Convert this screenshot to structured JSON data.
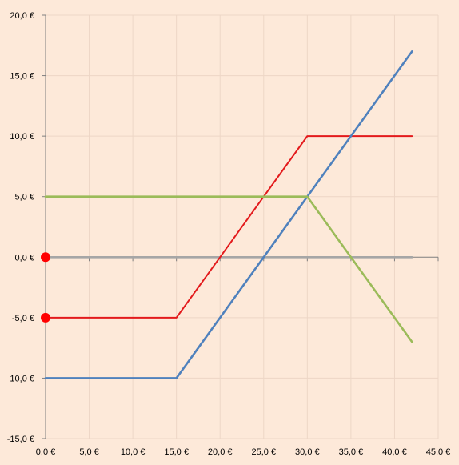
{
  "chart_data": {
    "type": "line",
    "title": "",
    "xlabel": "",
    "ylabel": "",
    "background": "#FDE9D9",
    "grid": true,
    "xlim": [
      0,
      45
    ],
    "ylim": [
      -15,
      20
    ],
    "x_ticks": [
      0,
      5,
      10,
      15,
      20,
      25,
      30,
      35,
      40,
      45
    ],
    "x_tick_labels": [
      "0,0 €",
      "5,0 €",
      "10,0 €",
      "15,0 €",
      "20,0 €",
      "25,0 €",
      "30,0 €",
      "35,0 €",
      "40,0 €",
      "45,0 €"
    ],
    "y_ticks": [
      20,
      15,
      10,
      5,
      0,
      -5,
      -10,
      -15
    ],
    "y_tick_labels": [
      "20,0 €",
      "15,0 €",
      "10,0 €",
      "5,0 €",
      "0,0 €",
      "-5,0 €",
      "-10,0 €",
      "-15,0 €"
    ],
    "series": [
      {
        "color": "#A6A6A6",
        "x": [
          0,
          42
        ],
        "y": [
          0,
          0
        ]
      },
      {
        "color": "#E31A1C",
        "x": [
          0,
          15,
          30,
          42
        ],
        "y": [
          -5,
          -5,
          10,
          10
        ]
      },
      {
        "color": "#4F81BD",
        "x": [
          0,
          15,
          42
        ],
        "y": [
          -10,
          -10,
          17
        ]
      },
      {
        "color": "#9BBB59",
        "x": [
          0,
          30,
          42
        ],
        "y": [
          5,
          5,
          -7
        ]
      }
    ],
    "markers": [
      {
        "color": "#FF0000",
        "x": 0,
        "y": 0
      },
      {
        "color": "#FF0000",
        "x": 0,
        "y": -5
      }
    ]
  }
}
